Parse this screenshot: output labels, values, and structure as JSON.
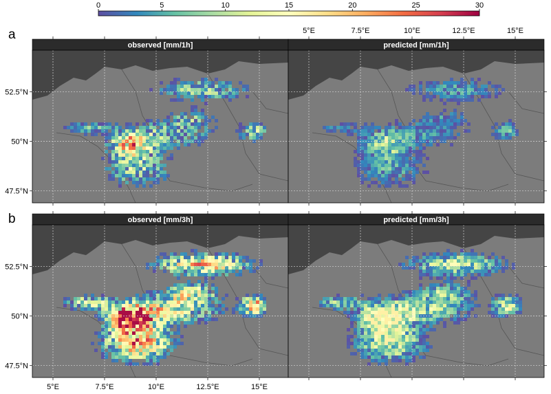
{
  "colorbar": {
    "ticks": [
      {
        "label": "0",
        "value": 0
      },
      {
        "label": "5",
        "value": 5
      },
      {
        "label": "10",
        "value": 10
      },
      {
        "label": "15",
        "value": 15
      },
      {
        "label": "20",
        "value": 20
      },
      {
        "label": "25",
        "value": 25
      },
      {
        "label": "30",
        "value": 30
      }
    ],
    "min": 0,
    "max": 30,
    "palette": [
      "#5e4fa2",
      "#3288bd",
      "#66c2a5",
      "#abdda4",
      "#e6f598",
      "#ffffbf",
      "#fee08b",
      "#fdae61",
      "#f46d43",
      "#d53e4f",
      "#9e0142"
    ]
  },
  "rows": [
    {
      "letter": "a",
      "panels": [
        {
          "title": "observed [mm/1h]",
          "scale": 0.62
        },
        {
          "title": "predicted [mm/1h]",
          "scale": 0.42
        }
      ]
    },
    {
      "letter": "b",
      "panels": [
        {
          "title": "observed [mm/3h]",
          "scale": 1.0
        },
        {
          "title": "predicted [mm/3h]",
          "scale": 0.82
        }
      ]
    }
  ],
  "axes": {
    "lon_ticks": [
      {
        "label": "5°E",
        "value": 5
      },
      {
        "label": "7.5°E",
        "value": 7.5
      },
      {
        "label": "10°E",
        "value": 10
      },
      {
        "label": "12.5°E",
        "value": 12.5
      },
      {
        "label": "15°E",
        "value": 15
      }
    ],
    "lat_ticks": [
      {
        "label": "52.5°N",
        "value": 52.5
      },
      {
        "label": "50°N",
        "value": 50
      },
      {
        "label": "47.5°N",
        "value": 47.5
      }
    ],
    "lon_range": [
      4.0,
      16.4
    ],
    "lat_range": [
      46.9,
      54.6
    ]
  },
  "colors": {
    "land": "#7c7c7c",
    "sea": "#454545",
    "strip": "#2b2b2b",
    "strip_text": "#ffffff",
    "grid": "#d8d8d8",
    "border": "#555555"
  }
}
